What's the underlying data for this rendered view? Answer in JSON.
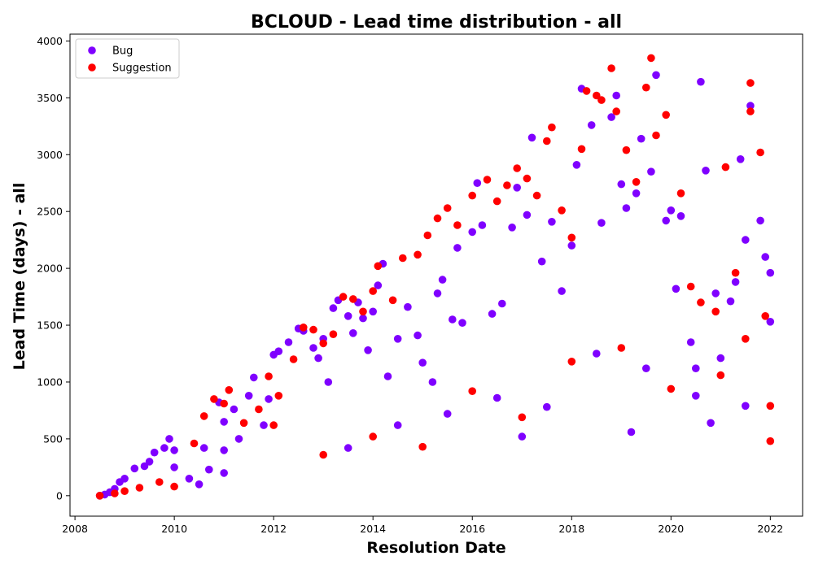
{
  "chart_data": {
    "type": "scatter",
    "title": "BCLOUD - Lead time distribution - all",
    "xlabel": "Resolution Date",
    "ylabel": "Lead Time (days) - all",
    "xlim": [
      2007.9,
      2022.65
    ],
    "ylim": [
      -180,
      4060
    ],
    "x_ticks": [
      2008,
      2010,
      2012,
      2014,
      2016,
      2018,
      2020,
      2022
    ],
    "x_tick_labels": [
      "2008",
      "2010",
      "2012",
      "2014",
      "2016",
      "2018",
      "2020",
      "2022"
    ],
    "y_ticks": [
      0,
      500,
      1000,
      1500,
      2000,
      2500,
      3000,
      3500,
      4000
    ],
    "y_tick_labels": [
      "0",
      "500",
      "1000",
      "1500",
      "2000",
      "2500",
      "3000",
      "3500",
      "4000"
    ],
    "grid": false,
    "legend": {
      "position": "top-left"
    },
    "series": [
      {
        "name": "Bug",
        "color": "#7f00ff",
        "points": [
          [
            2008.5,
            0
          ],
          [
            2008.6,
            10
          ],
          [
            2008.7,
            30
          ],
          [
            2008.8,
            60
          ],
          [
            2008.9,
            120
          ],
          [
            2009.0,
            150
          ],
          [
            2009.2,
            240
          ],
          [
            2009.4,
            260
          ],
          [
            2009.5,
            300
          ],
          [
            2009.6,
            380
          ],
          [
            2009.8,
            420
          ],
          [
            2009.9,
            500
          ],
          [
            2010.0,
            400
          ],
          [
            2010.0,
            250
          ],
          [
            2010.3,
            150
          ],
          [
            2010.5,
            100
          ],
          [
            2010.6,
            420
          ],
          [
            2010.7,
            230
          ],
          [
            2010.9,
            820
          ],
          [
            2011.0,
            650
          ],
          [
            2011.0,
            400
          ],
          [
            2011.0,
            200
          ],
          [
            2011.2,
            760
          ],
          [
            2011.3,
            500
          ],
          [
            2011.5,
            880
          ],
          [
            2011.6,
            1040
          ],
          [
            2011.8,
            620
          ],
          [
            2011.9,
            850
          ],
          [
            2012.0,
            1240
          ],
          [
            2012.1,
            1270
          ],
          [
            2012.3,
            1350
          ],
          [
            2012.5,
            1470
          ],
          [
            2012.6,
            1450
          ],
          [
            2012.8,
            1300
          ],
          [
            2012.9,
            1210
          ],
          [
            2013.0,
            1380
          ],
          [
            2013.1,
            1000
          ],
          [
            2013.2,
            1650
          ],
          [
            2013.3,
            1720
          ],
          [
            2013.5,
            1580
          ],
          [
            2013.6,
            1430
          ],
          [
            2013.7,
            1700
          ],
          [
            2013.8,
            1560
          ],
          [
            2013.9,
            1280
          ],
          [
            2014.0,
            1620
          ],
          [
            2014.1,
            1850
          ],
          [
            2014.2,
            2040
          ],
          [
            2014.3,
            1050
          ],
          [
            2014.5,
            1380
          ],
          [
            2014.7,
            1660
          ],
          [
            2014.9,
            1410
          ],
          [
            2015.0,
            1170
          ],
          [
            2015.2,
            1000
          ],
          [
            2015.3,
            1780
          ],
          [
            2015.4,
            1900
          ],
          [
            2015.6,
            1550
          ],
          [
            2015.7,
            2180
          ],
          [
            2015.8,
            1520
          ],
          [
            2016.0,
            2320
          ],
          [
            2016.1,
            2750
          ],
          [
            2016.2,
            2380
          ],
          [
            2016.4,
            1600
          ],
          [
            2016.6,
            1690
          ],
          [
            2016.8,
            2360
          ],
          [
            2016.9,
            2710
          ],
          [
            2017.1,
            2470
          ],
          [
            2017.2,
            3150
          ],
          [
            2017.4,
            2060
          ],
          [
            2017.6,
            2410
          ],
          [
            2017.8,
            1800
          ],
          [
            2018.0,
            2200
          ],
          [
            2018.1,
            2910
          ],
          [
            2018.2,
            3580
          ],
          [
            2018.4,
            3260
          ],
          [
            2018.6,
            2400
          ],
          [
            2018.8,
            3330
          ],
          [
            2018.9,
            3520
          ],
          [
            2019.0,
            2740
          ],
          [
            2019.1,
            2530
          ],
          [
            2019.3,
            2660
          ],
          [
            2019.4,
            3140
          ],
          [
            2019.6,
            2850
          ],
          [
            2019.7,
            3700
          ],
          [
            2019.9,
            2420
          ],
          [
            2020.0,
            2510
          ],
          [
            2020.1,
            1820
          ],
          [
            2020.2,
            2460
          ],
          [
            2020.4,
            1350
          ],
          [
            2020.5,
            1120
          ],
          [
            2020.6,
            3640
          ],
          [
            2020.7,
            2860
          ],
          [
            2020.9,
            1780
          ],
          [
            2021.0,
            1210
          ],
          [
            2021.2,
            1710
          ],
          [
            2021.3,
            1880
          ],
          [
            2021.4,
            2960
          ],
          [
            2021.5,
            2250
          ],
          [
            2021.6,
            3430
          ],
          [
            2021.8,
            2420
          ],
          [
            2021.9,
            2100
          ],
          [
            2022.0,
            1960
          ],
          [
            2022.0,
            1530
          ],
          [
            2013.5,
            420
          ],
          [
            2014.5,
            620
          ],
          [
            2015.5,
            720
          ],
          [
            2016.5,
            860
          ],
          [
            2017.5,
            780
          ],
          [
            2018.5,
            1250
          ],
          [
            2019.5,
            1120
          ],
          [
            2020.5,
            880
          ],
          [
            2021.5,
            790
          ],
          [
            2019.2,
            560
          ],
          [
            2020.8,
            640
          ],
          [
            2017.0,
            520
          ]
        ]
      },
      {
        "name": "Suggestion",
        "color": "#ff0000",
        "points": [
          [
            2008.5,
            0
          ],
          [
            2008.8,
            20
          ],
          [
            2009.0,
            40
          ],
          [
            2009.3,
            70
          ],
          [
            2009.7,
            120
          ],
          [
            2010.0,
            80
          ],
          [
            2010.4,
            460
          ],
          [
            2010.6,
            700
          ],
          [
            2010.8,
            850
          ],
          [
            2011.0,
            810
          ],
          [
            2011.1,
            930
          ],
          [
            2011.4,
            640
          ],
          [
            2011.7,
            760
          ],
          [
            2011.9,
            1050
          ],
          [
            2012.1,
            880
          ],
          [
            2012.4,
            1200
          ],
          [
            2012.6,
            1480
          ],
          [
            2012.8,
            1460
          ],
          [
            2013.0,
            1340
          ],
          [
            2013.2,
            1420
          ],
          [
            2013.4,
            1750
          ],
          [
            2013.6,
            1730
          ],
          [
            2013.8,
            1620
          ],
          [
            2014.0,
            1800
          ],
          [
            2014.1,
            2020
          ],
          [
            2014.4,
            1720
          ],
          [
            2014.6,
            2090
          ],
          [
            2014.9,
            2120
          ],
          [
            2015.1,
            2290
          ],
          [
            2015.3,
            2440
          ],
          [
            2015.5,
            2530
          ],
          [
            2015.7,
            2380
          ],
          [
            2016.0,
            2640
          ],
          [
            2016.3,
            2780
          ],
          [
            2016.5,
            2590
          ],
          [
            2016.7,
            2730
          ],
          [
            2016.9,
            2880
          ],
          [
            2017.1,
            2790
          ],
          [
            2017.3,
            2640
          ],
          [
            2017.5,
            3120
          ],
          [
            2017.6,
            3240
          ],
          [
            2017.8,
            2510
          ],
          [
            2018.0,
            2270
          ],
          [
            2018.2,
            3050
          ],
          [
            2018.3,
            3560
          ],
          [
            2018.5,
            3520
          ],
          [
            2018.6,
            3480
          ],
          [
            2018.8,
            3760
          ],
          [
            2018.9,
            3380
          ],
          [
            2019.1,
            3040
          ],
          [
            2019.3,
            2760
          ],
          [
            2019.5,
            3590
          ],
          [
            2019.6,
            3850
          ],
          [
            2019.7,
            3170
          ],
          [
            2019.9,
            3350
          ],
          [
            2020.2,
            2660
          ],
          [
            2020.4,
            1840
          ],
          [
            2020.6,
            1700
          ],
          [
            2020.9,
            1620
          ],
          [
            2021.1,
            2890
          ],
          [
            2021.3,
            1960
          ],
          [
            2021.5,
            1380
          ],
          [
            2021.6,
            3630
          ],
          [
            2021.6,
            3380
          ],
          [
            2021.8,
            3020
          ],
          [
            2021.9,
            1580
          ],
          [
            2022.0,
            790
          ],
          [
            2022.0,
            480
          ],
          [
            2012.0,
            620
          ],
          [
            2013.0,
            360
          ],
          [
            2014.0,
            520
          ],
          [
            2015.0,
            430
          ],
          [
            2016.0,
            920
          ],
          [
            2017.0,
            690
          ],
          [
            2018.0,
            1180
          ],
          [
            2019.0,
            1300
          ],
          [
            2020.0,
            940
          ],
          [
            2021.0,
            1060
          ]
        ]
      }
    ]
  }
}
